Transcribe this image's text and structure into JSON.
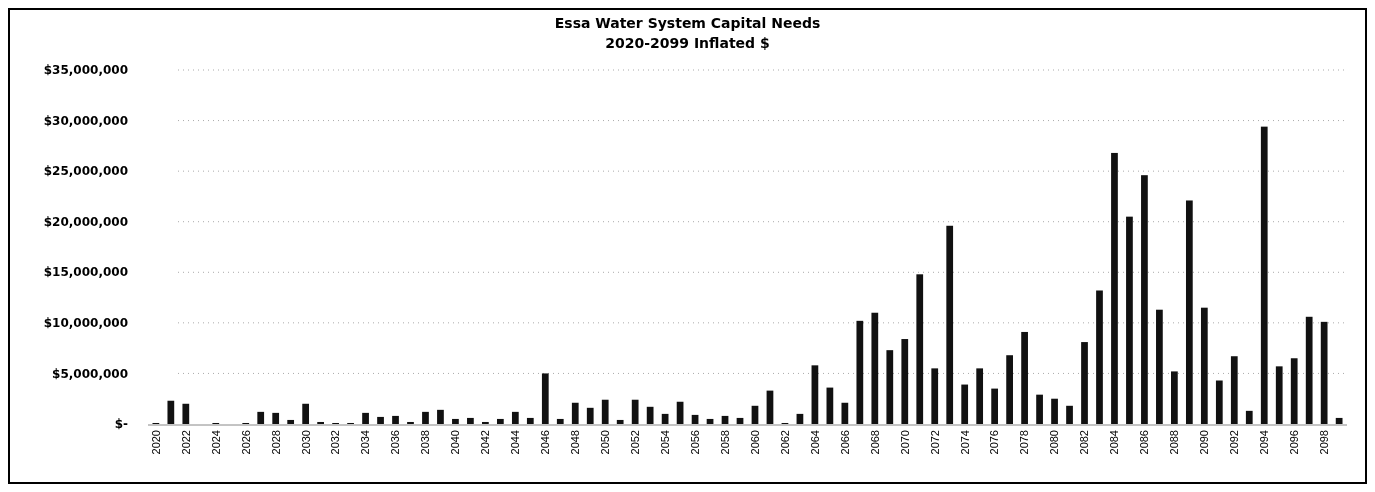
{
  "chart_data": {
    "type": "bar",
    "title": "Essa Water System Capital Needs",
    "subtitle": "2020-2099 Inflated $",
    "categories": [
      "2020",
      null,
      "2022",
      null,
      "2024",
      null,
      "2026",
      null,
      "2028",
      null,
      "2030",
      null,
      "2032",
      null,
      "2034",
      null,
      "2036",
      null,
      "2038",
      null,
      "2040",
      null,
      "2042",
      null,
      "2044",
      null,
      "2046",
      null,
      "2048",
      null,
      "2050",
      null,
      "2052",
      null,
      "2054",
      null,
      "2056",
      null,
      "2058",
      null,
      "2060",
      null,
      "2062",
      null,
      "2064",
      null,
      "2066",
      null,
      "2068",
      null,
      "2070",
      null,
      "2072",
      null,
      "2074",
      null,
      "2076",
      null,
      "2078",
      null,
      "2080",
      null,
      "2082",
      null,
      "2084",
      null,
      "2086",
      null,
      "2088",
      null,
      "2090",
      null,
      "2092",
      null,
      "2094",
      null,
      "2096",
      null,
      "2098",
      null
    ],
    "values": [
      100000,
      2300000,
      2000000,
      0,
      100000,
      0,
      100000,
      1200000,
      1100000,
      400000,
      2000000,
      200000,
      100000,
      100000,
      1100000,
      700000,
      800000,
      200000,
      1200000,
      1400000,
      500000,
      600000,
      200000,
      500000,
      1200000,
      600000,
      5000000,
      500000,
      2100000,
      1600000,
      2400000,
      400000,
      2400000,
      1700000,
      1000000,
      2200000,
      900000,
      500000,
      800000,
      600000,
      1800000,
      3300000,
      100000,
      1000000,
      5800000,
      3600000,
      2100000,
      10200000,
      11000000,
      7300000,
      8400000,
      14800000,
      5500000,
      19600000,
      3900000,
      5500000,
      3500000,
      6800000,
      9100000,
      2900000,
      2500000,
      1800000,
      8100000,
      13200000,
      26800000,
      20500000,
      24600000,
      11300000,
      5200000,
      22100000,
      11500000,
      4300000,
      6700000,
      1300000,
      29400000,
      5700000,
      6500000,
      10600000,
      10100000,
      600000
    ],
    "color": "#111111",
    "ylim": [
      0,
      35000000
    ],
    "yticks": [
      {
        "value": 0,
        "label": "$-"
      },
      {
        "value": 5000000,
        "label": "$5,000,000"
      },
      {
        "value": 10000000,
        "label": "$10,000,000"
      },
      {
        "value": 15000000,
        "label": "$15,000,000"
      },
      {
        "value": 20000000,
        "label": "$20,000,000"
      },
      {
        "value": 25000000,
        "label": "$25,000,000"
      },
      {
        "value": 30000000,
        "label": "$30,000,000"
      },
      {
        "value": 35000000,
        "label": "$35,000,000"
      }
    ],
    "grid": "y"
  }
}
